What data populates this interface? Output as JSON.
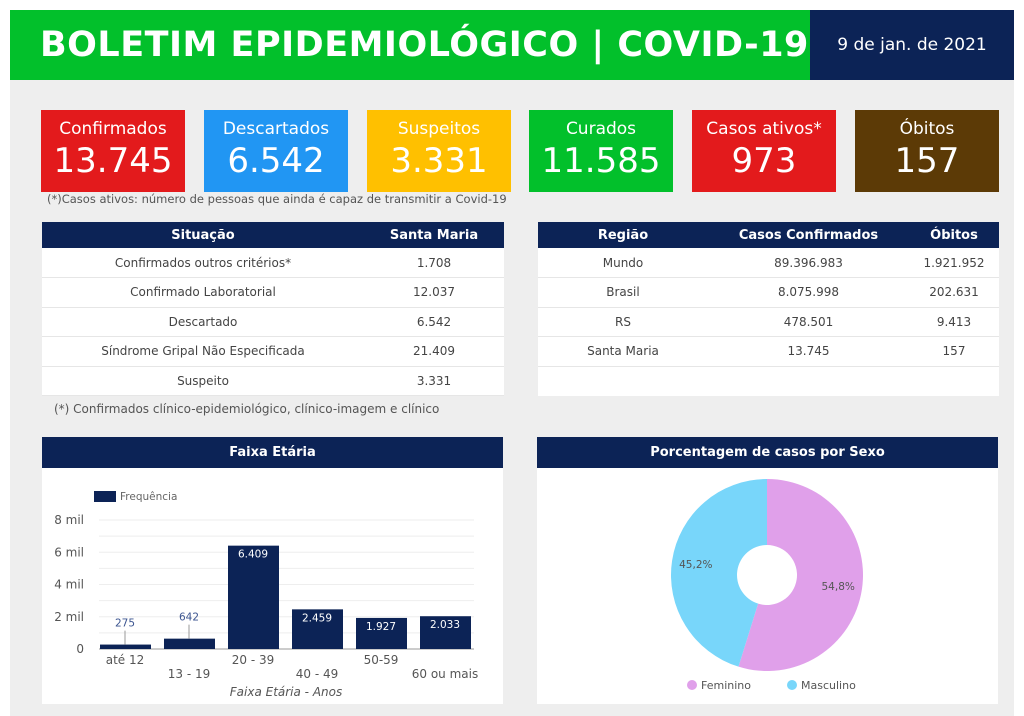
{
  "header": {
    "title": "BOLETIM EPIDEMIOLÓGICO | COVID-19",
    "date": "9 de jan. de 2021"
  },
  "cards": [
    {
      "label": "Confirmados",
      "value": "13.745",
      "color": "#e31a1c"
    },
    {
      "label": "Descartados",
      "value": "6.542",
      "color": "#2196f3"
    },
    {
      "label": "Suspeitos",
      "value": "3.331",
      "color": "#ffc000"
    },
    {
      "label": "Curados",
      "value": "11.585",
      "color": "#02c02b"
    },
    {
      "label": "Casos ativos*",
      "value": "973",
      "color": "#e31a1c"
    },
    {
      "label": "Óbitos",
      "value": "157",
      "color": "#5c3a06"
    }
  ],
  "cards_note": "(*)Casos ativos: número de pessoas que ainda é capaz de transmitir a Covid-19",
  "situacao": {
    "headers": [
      "Situação",
      "Santa Maria"
    ],
    "rows": [
      [
        "Confirmados outros critérios*",
        "1.708"
      ],
      [
        "Confirmado Laboratorial",
        "12.037"
      ],
      [
        "Descartado",
        "6.542"
      ],
      [
        "Síndrome Gripal Não Especificada",
        "21.409"
      ],
      [
        "Suspeito",
        "3.331"
      ]
    ],
    "note": "(*) Confirmados clínico-epidemiológico, clínico-imagem e clínico"
  },
  "regiao": {
    "headers": [
      "Região",
      "Casos Confirmados",
      "Óbitos"
    ],
    "rows": [
      [
        "Mundo",
        "89.396.983",
        "1.921.952"
      ],
      [
        "Brasil",
        "8.075.998",
        "202.631"
      ],
      [
        "RS",
        "478.501",
        "9.413"
      ],
      [
        "Santa Maria",
        "13.745",
        "157"
      ]
    ]
  },
  "chart_data": [
    {
      "type": "bar",
      "title": "Faixa Etária",
      "xlabel": "Faixa Etária - Anos",
      "ylabel": "",
      "legend": "top-left",
      "categories": [
        "até 12",
        "13 - 19",
        "20 - 39",
        "40 - 49",
        "50-59",
        "60 ou mais"
      ],
      "series": [
        {
          "name": "Frequência",
          "values": [
            275,
            642,
            6409,
            2459,
            1927,
            2033
          ],
          "labels": [
            "275",
            "642",
            "6.409",
            "2.459",
            "1.927",
            "2.033"
          ],
          "color": "#0c2356"
        }
      ],
      "ylim": [
        0,
        8000
      ],
      "yticks": [
        "0",
        "2 mil",
        "4 mil",
        "6 mil",
        "8 mil"
      ],
      "grid": true
    },
    {
      "type": "pie",
      "title": "Porcentagem de casos por Sexo",
      "donut": true,
      "legend": "bottom",
      "slices": [
        {
          "name": "Feminino",
          "value": 54.8,
          "label": "54,8%",
          "color": "#e0a0ea"
        },
        {
          "name": "Masculino",
          "value": 45.2,
          "label": "45,2%",
          "color": "#78d6fa"
        }
      ]
    }
  ]
}
